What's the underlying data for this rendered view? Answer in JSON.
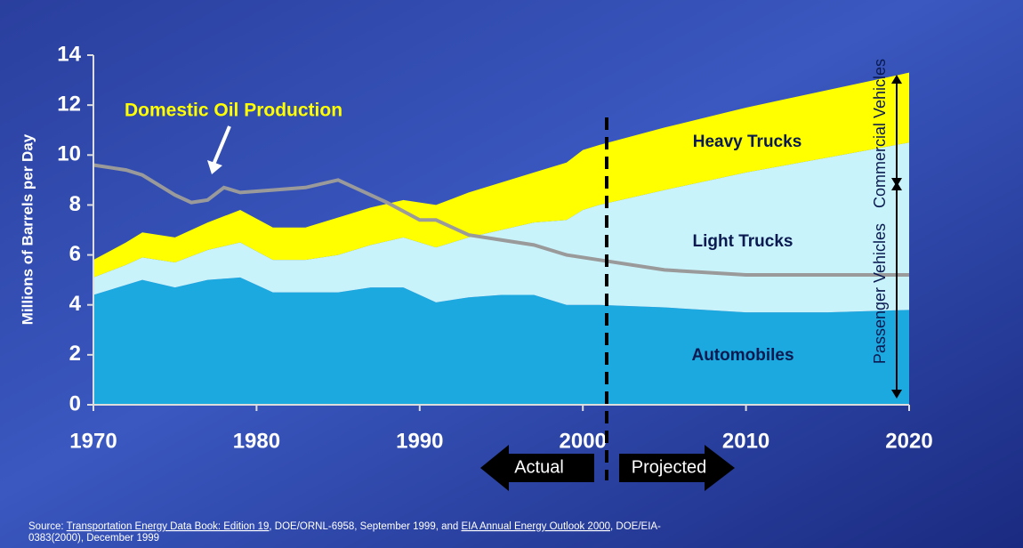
{
  "chart_data": {
    "type": "stacked_area",
    "y_label": "Millions of Barrels per Day",
    "x": [
      1970,
      1972,
      1973,
      1975,
      1977,
      1979,
      1981,
      1983,
      1985,
      1987,
      1989,
      1991,
      1993,
      1995,
      1997,
      1999,
      2000,
      2001,
      2005,
      2010,
      2015,
      2020
    ],
    "series": [
      {
        "name": "Automobiles",
        "color": "#1ba9e0",
        "values": [
          4.4,
          4.8,
          5.0,
          4.7,
          5.0,
          5.1,
          4.5,
          4.5,
          4.5,
          4.7,
          4.7,
          4.1,
          4.3,
          4.4,
          4.4,
          4.0,
          4.0,
          4.0,
          3.9,
          3.7,
          3.7,
          3.8
        ]
      },
      {
        "name": "Light Trucks",
        "color": "#c9f3fb",
        "values": [
          0.7,
          0.8,
          0.9,
          1.0,
          1.2,
          1.4,
          1.3,
          1.3,
          1.5,
          1.7,
          2.0,
          2.2,
          2.4,
          2.6,
          2.9,
          3.4,
          3.8,
          4.0,
          4.7,
          5.6,
          6.2,
          6.7
        ]
      },
      {
        "name": "Heavy Trucks",
        "color": "#ffff00",
        "values": [
          0.7,
          0.9,
          1.0,
          1.0,
          1.1,
          1.3,
          1.3,
          1.3,
          1.5,
          1.5,
          1.5,
          1.7,
          1.8,
          1.9,
          2.0,
          2.3,
          2.4,
          2.4,
          2.5,
          2.6,
          2.7,
          2.8
        ]
      }
    ],
    "line": {
      "name": "Domestic Oil Production",
      "color": "#9a9a9a",
      "x": [
        1970,
        1972,
        1973,
        1975,
        1976,
        1977,
        1978,
        1979,
        1981,
        1983,
        1985,
        1986,
        1988,
        1990,
        1991,
        1993,
        1995,
        1997,
        1999,
        2001,
        2005,
        2010,
        2015,
        2020
      ],
      "values": [
        9.6,
        9.4,
        9.2,
        8.4,
        8.1,
        8.2,
        8.7,
        8.5,
        8.6,
        8.7,
        9.0,
        8.7,
        8.1,
        7.4,
        7.4,
        6.8,
        6.6,
        6.4,
        6.0,
        5.8,
        5.4,
        5.2,
        5.2,
        5.2
      ]
    },
    "xlim": [
      1970,
      2020
    ],
    "xticks": [
      1970,
      1980,
      1990,
      2000,
      2010,
      2020
    ],
    "ylim": [
      0,
      14
    ],
    "yticks": [
      0,
      2,
      4,
      6,
      8,
      10,
      12,
      14
    ],
    "annotations": {
      "commercial": "Commercial Vehicles",
      "passenger": "Passenger Vehicles",
      "actual": "Actual",
      "projected": "Projected"
    },
    "source": [
      {
        "text": "Source: ",
        "underline": false
      },
      {
        "text": "Transportation Energy Data Book: Edition 19",
        "underline": true
      },
      {
        "text": ", DOE/ORNL-6958, September 1999, and ",
        "underline": false
      },
      {
        "text": "EIA Annual Energy Outlook 2000",
        "underline": true
      },
      {
        "text": ", DOE/EIA-",
        "underline": false
      },
      {
        "text": "0383(2000), December 1999",
        "underline": false
      }
    ]
  }
}
